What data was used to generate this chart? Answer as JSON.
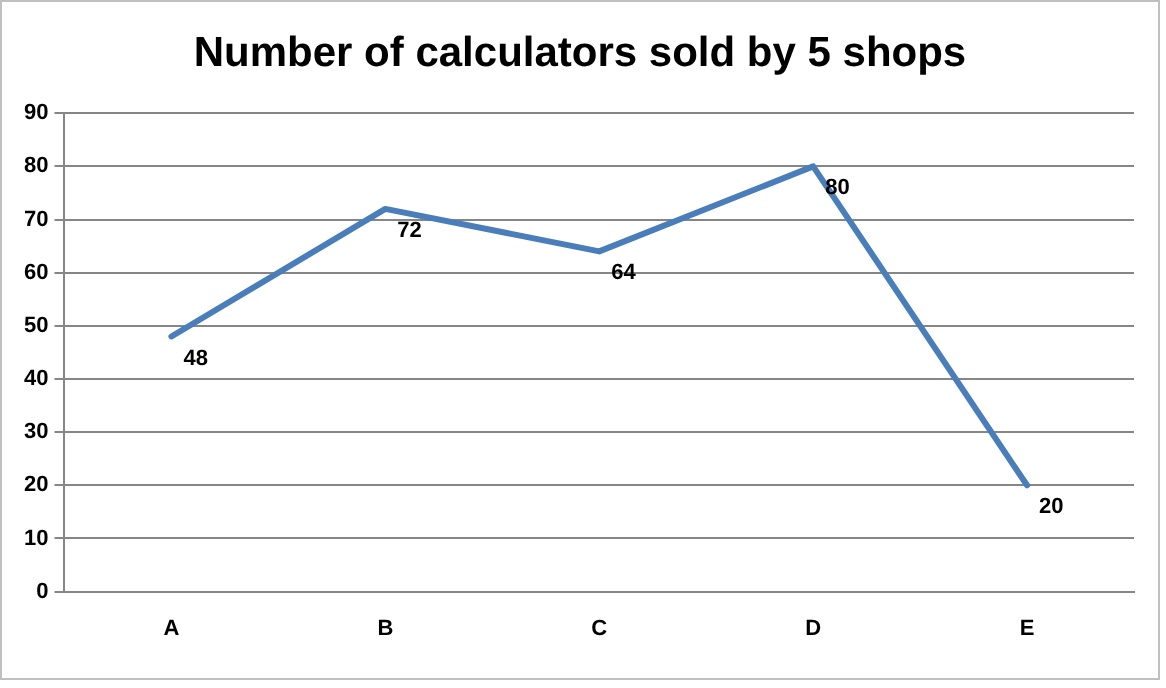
{
  "chart_data": {
    "type": "line",
    "title": "Number of calculators sold by 5 shops",
    "categories": [
      "A",
      "B",
      "C",
      "D",
      "E"
    ],
    "values": [
      48,
      72,
      64,
      80,
      20
    ],
    "color": "#4a7ebb",
    "ylim": [
      0,
      90
    ],
    "yticks": [
      0,
      10,
      20,
      30,
      40,
      50,
      60,
      70,
      80,
      90
    ],
    "grid": "y",
    "data_labels": true,
    "marker": "none",
    "line_style": "solid"
  }
}
